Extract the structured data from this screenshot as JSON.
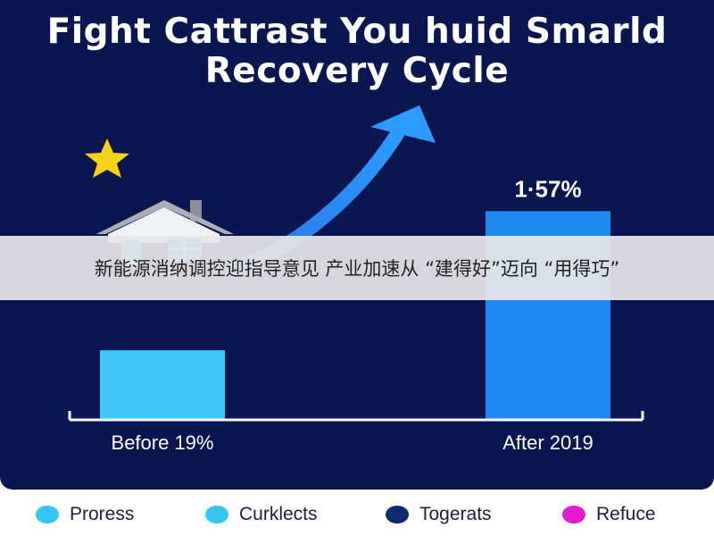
{
  "chart_data": {
    "type": "bar",
    "title": "Fight Cattrast You huid Smarld Recovery Cycle",
    "categories": [
      "Before 19%",
      "After 2019"
    ],
    "values": [
      19,
      57
    ],
    "data_labels": [
      "",
      "1·57%"
    ],
    "ylim": [
      0,
      100
    ],
    "grid": false,
    "bar_colors": [
      "#3ec8f5",
      "#1f88f0"
    ],
    "legend_position": "bottom",
    "legend": [
      {
        "label": "Proress",
        "color": "#35c4ee"
      },
      {
        "label": "Curklects",
        "color": "#35c4ee"
      },
      {
        "label": "Togerats",
        "color": "#0f2a6e"
      },
      {
        "label": "Refuce",
        "color": "#e21ad0"
      }
    ],
    "icons": [
      "star-icon",
      "house-icon",
      "rising-arrow-icon"
    ]
  },
  "overlay": {
    "text": "新能源消纳调控迎指导意见 产业加速从 “建得好”迈向 “用得巧”"
  },
  "colors": {
    "background": "#0a1650",
    "star": "#f7d21a",
    "arrow": "#1f88f0",
    "axis": "#ffffff"
  }
}
